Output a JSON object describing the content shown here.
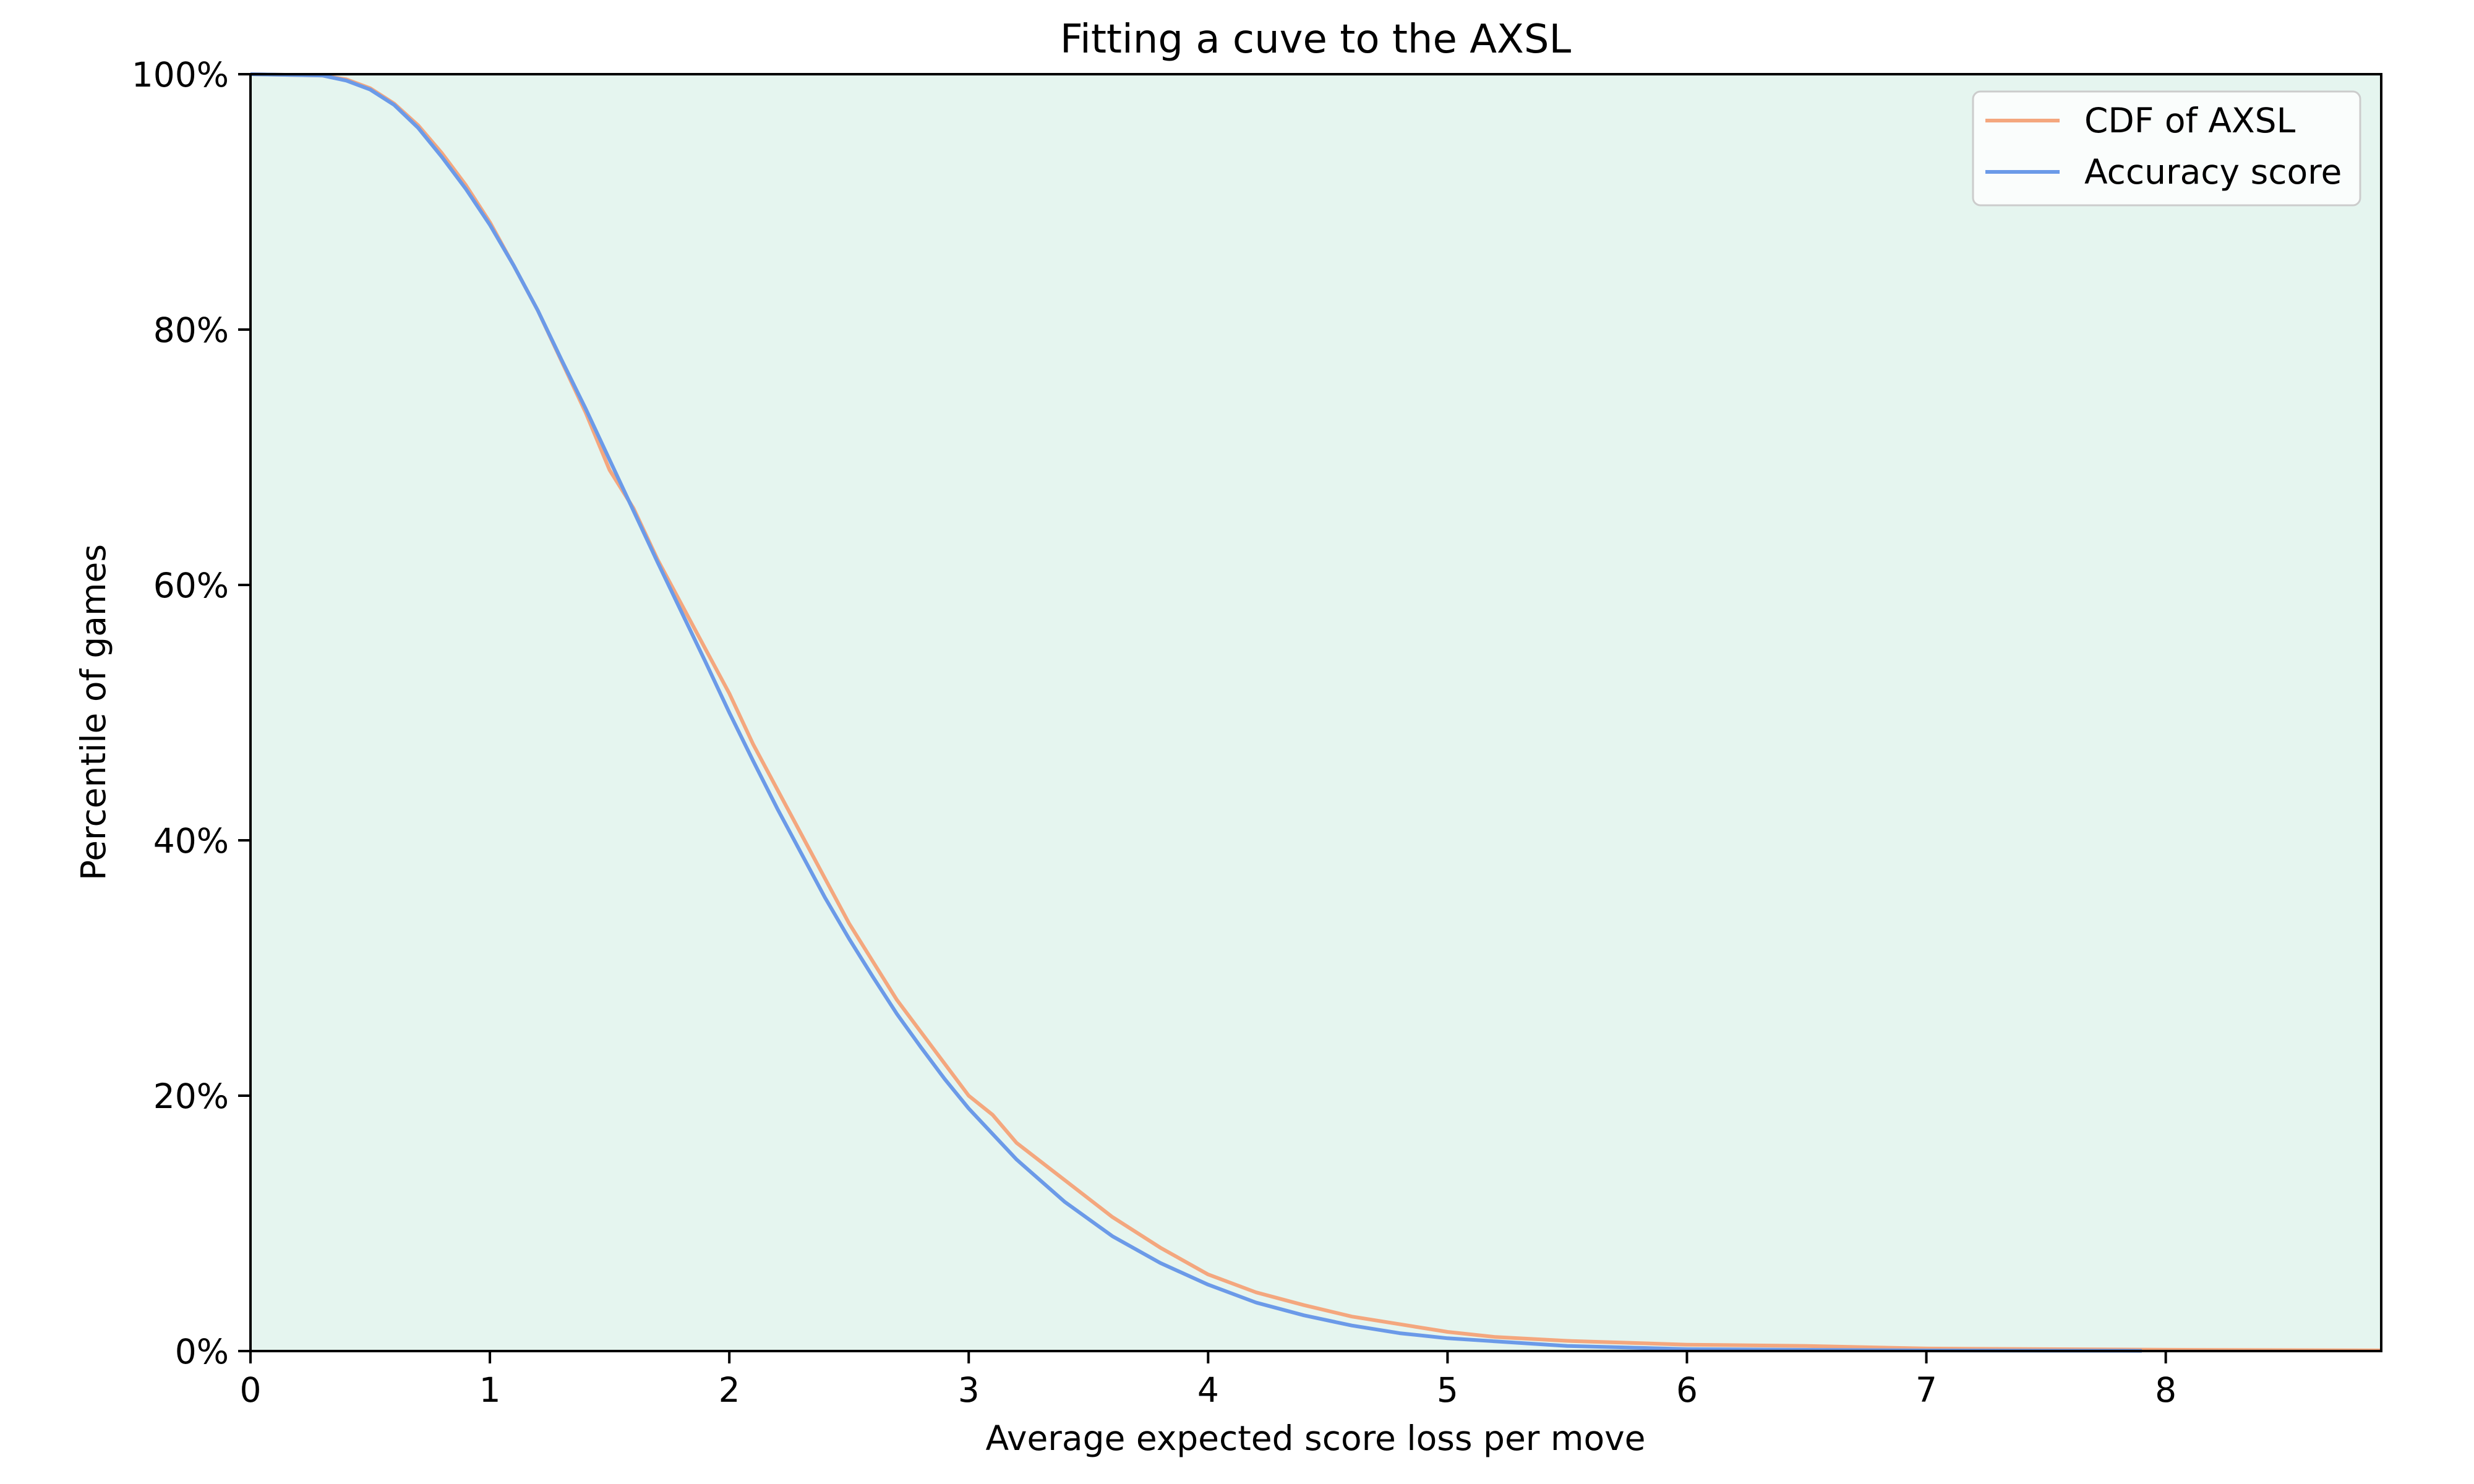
{
  "chart_data": {
    "type": "line",
    "title": "Fitting a cuve to the AXSL",
    "xlabel": "Average expected score loss per move",
    "ylabel": "Percentile of games",
    "xlim": [
      0,
      8.9
    ],
    "ylim": [
      0,
      100
    ],
    "x_ticks": [
      "0",
      "1",
      "2",
      "3",
      "4",
      "5",
      "6",
      "7",
      "8"
    ],
    "y_ticks": [
      "0%",
      "20%",
      "40%",
      "60%",
      "80%",
      "100%"
    ],
    "legend_position": "top-right",
    "background_color": "#e5f5ef",
    "grid": false,
    "series": [
      {
        "name": "CDF of AXSL",
        "color": "#f4a77e",
        "points": [
          [
            0.0,
            100.0
          ],
          [
            0.3,
            99.9
          ],
          [
            0.4,
            99.6
          ],
          [
            0.5,
            98.9
          ],
          [
            0.6,
            97.7
          ],
          [
            0.7,
            96.0
          ],
          [
            0.8,
            93.8
          ],
          [
            0.9,
            91.3
          ],
          [
            1.0,
            88.4
          ],
          [
            1.1,
            85.0
          ],
          [
            1.2,
            81.5
          ],
          [
            1.3,
            77.5
          ],
          [
            1.4,
            73.5
          ],
          [
            1.5,
            69.0
          ],
          [
            1.6,
            66.0
          ],
          [
            1.7,
            62.0
          ],
          [
            1.8,
            58.5
          ],
          [
            1.9,
            55.0
          ],
          [
            2.0,
            51.5
          ],
          [
            2.1,
            47.5
          ],
          [
            2.2,
            44.0
          ],
          [
            2.3,
            40.5
          ],
          [
            2.4,
            37.0
          ],
          [
            2.5,
            33.5
          ],
          [
            2.6,
            30.5
          ],
          [
            2.7,
            27.5
          ],
          [
            2.8,
            25.0
          ],
          [
            2.9,
            22.5
          ],
          [
            3.0,
            20.0
          ],
          [
            3.1,
            18.5
          ],
          [
            3.2,
            16.3
          ],
          [
            3.4,
            13.4
          ],
          [
            3.6,
            10.5
          ],
          [
            3.8,
            8.1
          ],
          [
            4.0,
            6.0
          ],
          [
            4.2,
            4.6
          ],
          [
            4.4,
            3.6
          ],
          [
            4.6,
            2.7
          ],
          [
            4.8,
            2.1
          ],
          [
            5.0,
            1.5
          ],
          [
            5.2,
            1.1
          ],
          [
            5.5,
            0.8
          ],
          [
            6.0,
            0.5
          ],
          [
            6.5,
            0.4
          ],
          [
            7.0,
            0.2
          ],
          [
            8.0,
            0.1
          ],
          [
            8.9,
            0.05
          ]
        ]
      },
      {
        "name": "Accuracy score",
        "color": "#6b9ae8",
        "points": [
          [
            0.0,
            100.0
          ],
          [
            0.3,
            99.9
          ],
          [
            0.4,
            99.5
          ],
          [
            0.5,
            98.8
          ],
          [
            0.6,
            97.6
          ],
          [
            0.7,
            95.8
          ],
          [
            0.8,
            93.5
          ],
          [
            0.9,
            91.0
          ],
          [
            1.0,
            88.2
          ],
          [
            1.1,
            85.0
          ],
          [
            1.2,
            81.5
          ],
          [
            1.3,
            77.6
          ],
          [
            1.4,
            73.8
          ],
          [
            1.5,
            69.8
          ],
          [
            1.6,
            65.8
          ],
          [
            1.7,
            61.8
          ],
          [
            1.8,
            57.9
          ],
          [
            1.9,
            54.0
          ],
          [
            2.0,
            50.0
          ],
          [
            2.1,
            46.2
          ],
          [
            2.2,
            42.5
          ],
          [
            2.3,
            39.0
          ],
          [
            2.4,
            35.5
          ],
          [
            2.5,
            32.3
          ],
          [
            2.6,
            29.3
          ],
          [
            2.7,
            26.4
          ],
          [
            2.8,
            23.8
          ],
          [
            2.9,
            21.3
          ],
          [
            3.0,
            19.0
          ],
          [
            3.2,
            15.0
          ],
          [
            3.4,
            11.7
          ],
          [
            3.6,
            9.0
          ],
          [
            3.8,
            6.9
          ],
          [
            4.0,
            5.2
          ],
          [
            4.2,
            3.8
          ],
          [
            4.4,
            2.8
          ],
          [
            4.6,
            2.0
          ],
          [
            4.8,
            1.4
          ],
          [
            5.0,
            1.0
          ],
          [
            5.5,
            0.4
          ],
          [
            6.0,
            0.15
          ],
          [
            7.0,
            0.05
          ],
          [
            7.9,
            0.02
          ]
        ]
      }
    ]
  }
}
